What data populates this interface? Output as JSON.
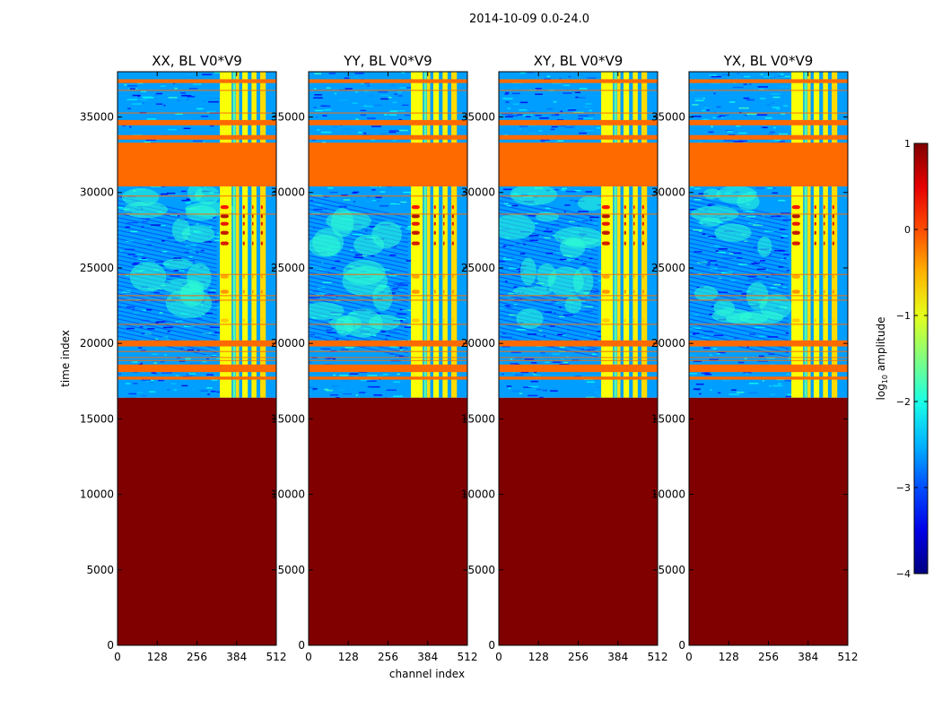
{
  "chart_data": {
    "type": "heatmap",
    "suptitle": "2014-10-09 0.0-24.0",
    "xlabel": "channel index",
    "ylabel": "time index",
    "xlim": [
      0,
      512
    ],
    "ylim": [
      0,
      38000
    ],
    "x_ticks": [
      0,
      128,
      256,
      384,
      512
    ],
    "y_ticks": [
      0,
      5000,
      10000,
      15000,
      20000,
      25000,
      30000,
      35000
    ],
    "colormap": "jet",
    "colorbar": {
      "label": "log10 amplitude",
      "label_base": "log",
      "label_sub": "10",
      "label_rest": " amplitude",
      "range": [
        -4,
        1
      ],
      "ticks": [
        -4,
        -3,
        -2,
        -1,
        0,
        1
      ],
      "tick_labels": [
        "−4",
        "−3",
        "−2",
        "−1",
        "0",
        "1"
      ]
    },
    "panels": [
      {
        "title": "XX, BL V0*V9"
      },
      {
        "title": "YY, BL V0*V9"
      },
      {
        "title": "XY, BL V0*V9"
      },
      {
        "title": "YX, BL V0*V9"
      }
    ],
    "saturated_region": {
      "time_range": [
        0,
        16400
      ],
      "log10_amplitude": 1
    },
    "flagged_time_bands": [
      [
        37250,
        37500
      ],
      [
        34450,
        34800
      ],
      [
        33500,
        33800
      ],
      [
        30400,
        33300
      ],
      [
        19800,
        20200
      ],
      [
        18100,
        18600
      ],
      [
        17600,
        17800
      ]
    ],
    "thin_flag_lines": [
      36800,
      35300,
      29800,
      28600,
      24600,
      23200,
      22900,
      21300,
      19500,
      19100,
      18900
    ]
  }
}
